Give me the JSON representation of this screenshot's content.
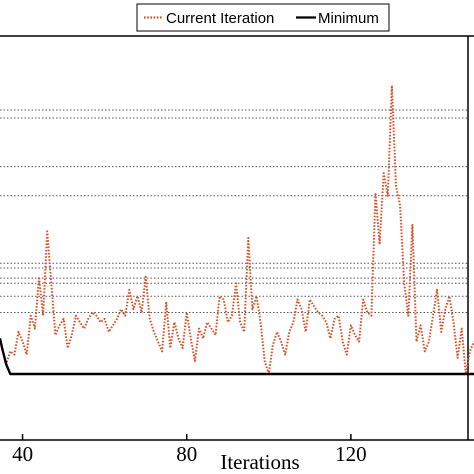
{
  "chart_data": {
    "type": "line",
    "title": "",
    "xlabel": "Iterations",
    "ylabel": "",
    "xlim": [
      34.5,
      150
    ],
    "ylim": [
      0,
      1
    ],
    "x_ticks": [
      40,
      80,
      120
    ],
    "grid": "dotted horizontal reference lines",
    "legend": {
      "placement": "top",
      "entries": [
        "Current Iteration",
        "Minimum"
      ]
    },
    "colors": {
      "current": "#d2522a",
      "minimum": "#000000",
      "reference": "#555555"
    },
    "reference_levels": [
      0.815,
      0.79,
      0.64,
      0.55,
      0.342,
      0.327,
      0.296,
      0.28,
      0.24,
      0.19
    ],
    "series": [
      {
        "name": "Current Iteration",
        "style": "dotted",
        "x": [
          34.5,
          35,
          36,
          37,
          38,
          39,
          40,
          41,
          42,
          43,
          44,
          45,
          46,
          47,
          48,
          49,
          50,
          51,
          52,
          53,
          54,
          55,
          56,
          57,
          58,
          59,
          60,
          61,
          62,
          63,
          64,
          65,
          66,
          67,
          68,
          69,
          70,
          71,
          72,
          73,
          74,
          75,
          76,
          77,
          78,
          79,
          80,
          81,
          82,
          83,
          84,
          85,
          86,
          87,
          88,
          89,
          90,
          91,
          92,
          93,
          94,
          95,
          96,
          97,
          98,
          99,
          100,
          101,
          102,
          103,
          104,
          105,
          106,
          107,
          108,
          109,
          110,
          111,
          112,
          113,
          114,
          115,
          116,
          117,
          118,
          119,
          120,
          121,
          122,
          123,
          124,
          125,
          126,
          127,
          128,
          129,
          130,
          131,
          132,
          133,
          134,
          135,
          136,
          137,
          138,
          139,
          140,
          141,
          142,
          143,
          144,
          145,
          146,
          147,
          148,
          149,
          150
        ],
        "y": [
          0.11,
          0.08,
          0.03,
          0.07,
          0.06,
          0.13,
          0.1,
          0.06,
          0.18,
          0.14,
          0.3,
          0.18,
          0.44,
          0.28,
          0.12,
          0.15,
          0.17,
          0.08,
          0.12,
          0.18,
          0.16,
          0.14,
          0.17,
          0.19,
          0.18,
          0.16,
          0.17,
          0.13,
          0.15,
          0.17,
          0.2,
          0.18,
          0.26,
          0.2,
          0.24,
          0.19,
          0.3,
          0.17,
          0.13,
          0.1,
          0.07,
          0.22,
          0.08,
          0.16,
          0.11,
          0.08,
          0.19,
          0.11,
          0.04,
          0.14,
          0.11,
          0.16,
          0.14,
          0.12,
          0.24,
          0.23,
          0.16,
          0.18,
          0.28,
          0.16,
          0.13,
          0.42,
          0.2,
          0.24,
          0.16,
          0.04,
          0.0,
          0.09,
          0.13,
          0.1,
          0.06,
          0.13,
          0.16,
          0.23,
          0.2,
          0.13,
          0.23,
          0.21,
          0.19,
          0.18,
          0.16,
          0.11,
          0.17,
          0.18,
          0.1,
          0.06,
          0.15,
          0.12,
          0.1,
          0.23,
          0.19,
          0.18,
          0.56,
          0.4,
          0.62,
          0.55,
          0.89,
          0.58,
          0.52,
          0.28,
          0.18,
          0.46,
          0.1,
          0.15,
          0.07,
          0.1,
          0.18,
          0.26,
          0.13,
          0.2,
          0.24,
          0.16,
          0.05,
          0.14,
          0.0,
          0.07,
          0.1
        ]
      },
      {
        "name": "Minimum",
        "style": "solid",
        "x": [
          34.5,
          35,
          36,
          37,
          150
        ],
        "y": [
          0.11,
          0.08,
          0.03,
          0.0,
          0.0
        ]
      }
    ]
  }
}
